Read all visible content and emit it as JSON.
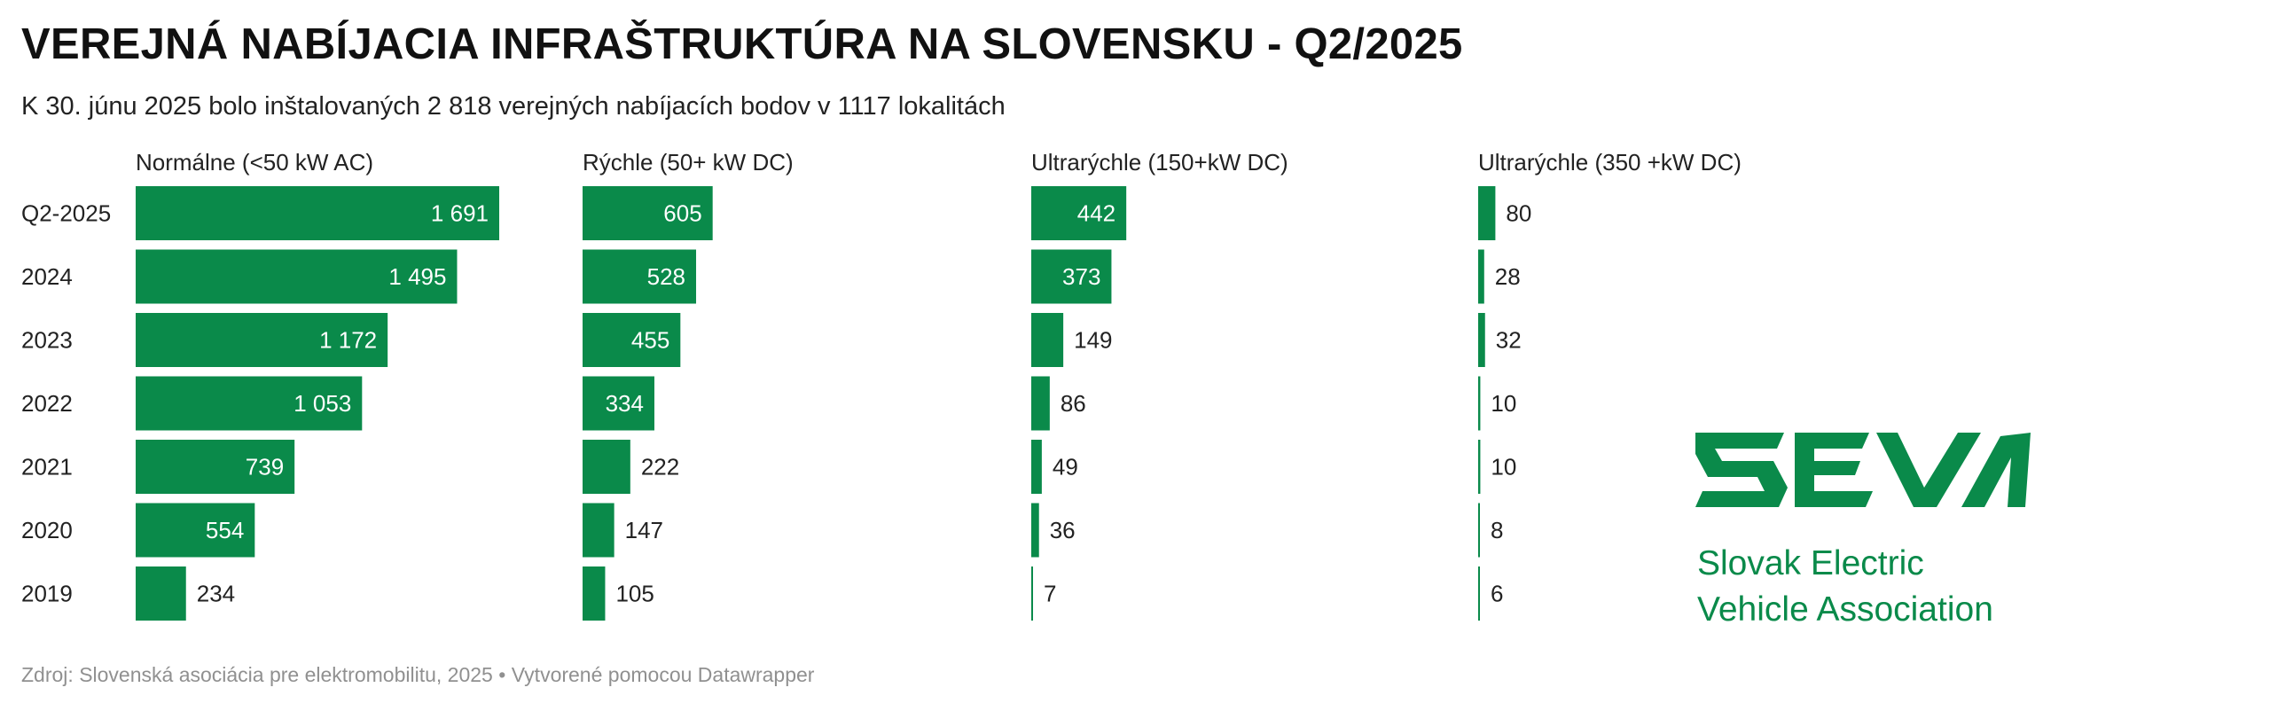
{
  "title": "VEREJNÁ NABÍJACIA INFRAŠTRUKTÚRA NA SLOVENSKU - Q2/2025",
  "subtitle": "K 30. júnu 2025 bolo inštalovaných 2 818 verejných nabíjacích bodov v 1117 lokalitách",
  "source": {
    "prefix": "Zdroj: ",
    "text": "Slovenská asociácia pre elektromobilitu, 2025",
    "separator": " • ",
    "tool": "Vytvorené pomocou Datawrapper"
  },
  "logo": {
    "wordmark": "SEVA",
    "line1": "Slovak Electric",
    "line2": "Vehicle Association",
    "color": "#0a8a4a"
  },
  "colors": {
    "bar": "#0a8a4a",
    "label_inside": "#ffffff",
    "label_outside": "#222222"
  },
  "chart_data": {
    "type": "bar",
    "orientation": "horizontal",
    "categories": [
      "Q2-2025",
      "2024",
      "2023",
      "2022",
      "2021",
      "2020",
      "2019"
    ],
    "shared_scale_max": 1691,
    "series": [
      {
        "name": "Normálne (<50 kW AC)",
        "values": [
          1691,
          1495,
          1172,
          1053,
          739,
          554,
          234
        ],
        "labels": [
          "1 691",
          "1 495",
          "1 172",
          "1 053",
          "739",
          "554",
          "234"
        ]
      },
      {
        "name": "Rýchle (50+ kW DC)",
        "values": [
          605,
          528,
          455,
          334,
          222,
          147,
          105
        ],
        "labels": [
          "605",
          "528",
          "455",
          "334",
          "222",
          "147",
          "105"
        ]
      },
      {
        "name": "Ultrarýchle (150+kW DC)",
        "values": [
          442,
          373,
          149,
          86,
          49,
          36,
          7
        ],
        "labels": [
          "442",
          "373",
          "149",
          "86",
          "49",
          "36",
          "7"
        ]
      },
      {
        "name": "Ultrarýchle (350 +kW DC)",
        "values": [
          80,
          28,
          32,
          10,
          10,
          8,
          6
        ],
        "labels": [
          "80",
          "28",
          "32",
          "10",
          "10",
          "8",
          "6"
        ]
      }
    ]
  }
}
